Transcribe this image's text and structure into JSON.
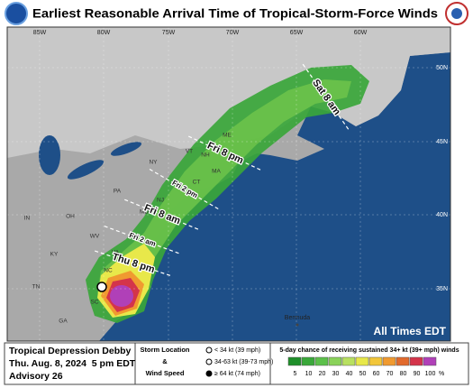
{
  "header": {
    "title": "Earliest Reasonable Arrival Time of Tropical-Storm-Force Winds"
  },
  "map": {
    "lon_labels": [
      "85W",
      "80W",
      "75W",
      "70W",
      "65W",
      "60W"
    ],
    "lat_labels": [
      "50N",
      "45N",
      "40N",
      "35N"
    ],
    "state_labels": [
      "IN",
      "OH",
      "KY",
      "TN",
      "GA",
      "WV",
      "VA",
      "PA",
      "NY",
      "VT",
      "NH",
      "ME",
      "MA",
      "CT",
      "NJ",
      "MD",
      "NC",
      "SC"
    ],
    "time_labels": [
      "Sat 8 am",
      "Fri 8 pm",
      "Fri 2 pm",
      "Fri 8 am",
      "Fri 2 am",
      "Thu 8 pm"
    ],
    "place_label": "Bermuda",
    "note": "All Times EDT"
  },
  "legend": {
    "storm": {
      "name": "Tropical Depression Debby",
      "time": "Thu. Aug. 8, 2024  5 pm EDT",
      "advisory": "Advisory 26"
    },
    "key": {
      "title_lines": [
        "Storm Location",
        "&",
        "Wind Speed"
      ],
      "items": [
        "< 34 kt (39 mph)",
        "34-63 kt (39-73 mph)",
        "≥ 64 kt (74 mph)"
      ]
    },
    "scale": {
      "title": "5-day chance of receiving sustained 34+ kt (39+ mph) winds",
      "ticks": [
        5,
        10,
        20,
        30,
        40,
        50,
        60,
        70,
        80,
        90,
        100
      ],
      "unit": "%",
      "colors": [
        "#1f8f2a",
        "#3aa83a",
        "#5cc04a",
        "#8ad25a",
        "#b8e060",
        "#e8e84a",
        "#f2c63a",
        "#f09a30",
        "#e26a2c",
        "#d4344a",
        "#b040b8"
      ]
    }
  }
}
